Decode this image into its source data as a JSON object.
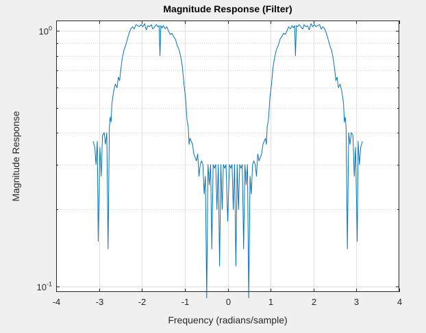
{
  "chart_data": {
    "type": "line",
    "title": "Magnitude Response (Filter)",
    "xlabel": "Frequency (radians/sample)",
    "ylabel": "Magnitude Response",
    "xlim": [
      -4,
      4
    ],
    "ylim": [
      0.095,
      1.1
    ],
    "yscale": "log",
    "grid": true,
    "xticks": [
      -4,
      -3,
      -2,
      -1,
      0,
      1,
      2,
      3,
      4
    ],
    "xtick_labels": [
      "-4",
      "-3",
      "-2",
      "-1",
      "0",
      "1",
      "2",
      "3",
      "4"
    ],
    "yticks": [
      0.1,
      1
    ],
    "ytick_labels": [
      {
        "base": "10",
        "exp": "-1"
      },
      {
        "base": "10",
        "exp": "0"
      }
    ],
    "series": [
      {
        "color": "#0072bd",
        "x": [
          -3.14,
          -3.1,
          -3.07,
          -3.04,
          -3.02,
          -2.98,
          -2.95,
          -2.92,
          -2.88,
          -2.85,
          -2.82,
          -2.79,
          -2.76,
          -2.74,
          -2.72,
          -2.7,
          -2.66,
          -2.62,
          -2.58,
          -2.55,
          -2.52,
          -2.5,
          -2.46,
          -2.42,
          -2.38,
          -2.34,
          -2.3,
          -2.26,
          -2.22,
          -2.18,
          -2.14,
          -2.1,
          -2.06,
          -2.02,
          -1.98,
          -1.94,
          -1.9,
          -1.86,
          -1.82,
          -1.78,
          -1.75,
          -1.72,
          -1.69,
          -1.66,
          -1.63,
          -1.6,
          -1.58,
          -1.56,
          -1.53,
          -1.5,
          -1.46,
          -1.42,
          -1.38,
          -1.34,
          -1.3,
          -1.26,
          -1.22,
          -1.18,
          -1.14,
          -1.1,
          -1.06,
          -1.02,
          -0.98,
          -0.95,
          -0.92,
          -0.9,
          -0.88,
          -0.85,
          -0.82,
          -0.79,
          -0.76,
          -0.73,
          -0.7,
          -0.67,
          -0.64,
          -0.61,
          -0.58,
          -0.55,
          -0.52,
          -0.49,
          -0.46,
          -0.43,
          -0.4,
          -0.37,
          -0.34,
          -0.31,
          -0.28,
          -0.25,
          -0.22,
          -0.19,
          -0.16,
          -0.13,
          -0.1,
          -0.07,
          -0.04,
          0.0,
          0.04,
          0.07,
          0.1,
          0.13,
          0.16,
          0.19,
          0.22,
          0.25,
          0.28,
          0.31,
          0.34,
          0.37,
          0.4,
          0.43,
          0.46,
          0.49,
          0.52,
          0.55,
          0.58,
          0.61,
          0.64,
          0.67,
          0.7,
          0.73,
          0.76,
          0.79,
          0.82,
          0.85,
          0.88,
          0.9,
          0.92,
          0.95,
          0.98,
          1.02,
          1.06,
          1.1,
          1.14,
          1.18,
          1.22,
          1.26,
          1.3,
          1.34,
          1.38,
          1.42,
          1.46,
          1.5,
          1.53,
          1.56,
          1.58,
          1.6,
          1.63,
          1.66,
          1.69,
          1.72,
          1.75,
          1.78,
          1.82,
          1.86,
          1.9,
          1.94,
          1.98,
          2.02,
          2.06,
          2.1,
          2.14,
          2.18,
          2.22,
          2.26,
          2.3,
          2.34,
          2.38,
          2.42,
          2.46,
          2.5,
          2.52,
          2.55,
          2.58,
          2.62,
          2.66,
          2.7,
          2.72,
          2.74,
          2.76,
          2.79,
          2.82,
          2.85,
          2.88,
          2.92,
          2.95,
          2.98,
          3.02,
          3.04,
          3.07,
          3.1,
          3.14
        ],
        "y": [
          0.37,
          0.35,
          0.3,
          0.37,
          0.15,
          0.35,
          0.27,
          0.39,
          0.4,
          0.36,
          0.4,
          0.14,
          0.42,
          0.46,
          0.44,
          0.52,
          0.58,
          0.62,
          0.6,
          0.66,
          0.64,
          0.69,
          0.78,
          0.84,
          0.88,
          0.93,
          0.98,
          1.02,
          1.04,
          1.02,
          1.06,
          1.05,
          1.04,
          1.06,
          1.04,
          1.07,
          1.01,
          1.05,
          1.04,
          1.06,
          1.02,
          1.03,
          1.05,
          1.06,
          1.04,
          1.05,
          0.8,
          1.05,
          1.03,
          1.05,
          1.02,
          1.04,
          1.0,
          0.97,
          0.98,
          0.95,
          0.93,
          0.88,
          0.85,
          0.8,
          0.73,
          0.62,
          0.54,
          0.45,
          0.42,
          0.36,
          0.38,
          0.37,
          0.36,
          0.33,
          0.32,
          0.31,
          0.33,
          0.27,
          0.3,
          0.31,
          0.3,
          0.23,
          0.27,
          0.09,
          0.3,
          0.25,
          0.3,
          0.14,
          0.3,
          0.29,
          0.3,
          0.2,
          0.3,
          0.12,
          0.3,
          0.2,
          0.3,
          0.29,
          0.3,
          0.18,
          0.3,
          0.29,
          0.3,
          0.2,
          0.3,
          0.12,
          0.3,
          0.2,
          0.3,
          0.29,
          0.3,
          0.14,
          0.3,
          0.25,
          0.3,
          0.09,
          0.27,
          0.23,
          0.3,
          0.31,
          0.3,
          0.27,
          0.33,
          0.31,
          0.32,
          0.33,
          0.36,
          0.37,
          0.38,
          0.36,
          0.42,
          0.45,
          0.54,
          0.62,
          0.73,
          0.8,
          0.85,
          0.88,
          0.93,
          0.95,
          0.98,
          0.97,
          1.0,
          1.04,
          1.02,
          1.05,
          1.03,
          1.05,
          0.8,
          1.05,
          1.04,
          1.06,
          1.05,
          1.03,
          1.02,
          1.06,
          1.04,
          1.05,
          1.01,
          1.07,
          1.04,
          1.06,
          1.04,
          1.05,
          1.06,
          1.02,
          1.04,
          1.02,
          0.98,
          0.93,
          0.88,
          0.84,
          0.78,
          0.69,
          0.64,
          0.66,
          0.6,
          0.62,
          0.58,
          0.52,
          0.44,
          0.46,
          0.42,
          0.14,
          0.4,
          0.36,
          0.4,
          0.39,
          0.27,
          0.35,
          0.15,
          0.37,
          0.3,
          0.35,
          0.37
        ]
      }
    ]
  }
}
